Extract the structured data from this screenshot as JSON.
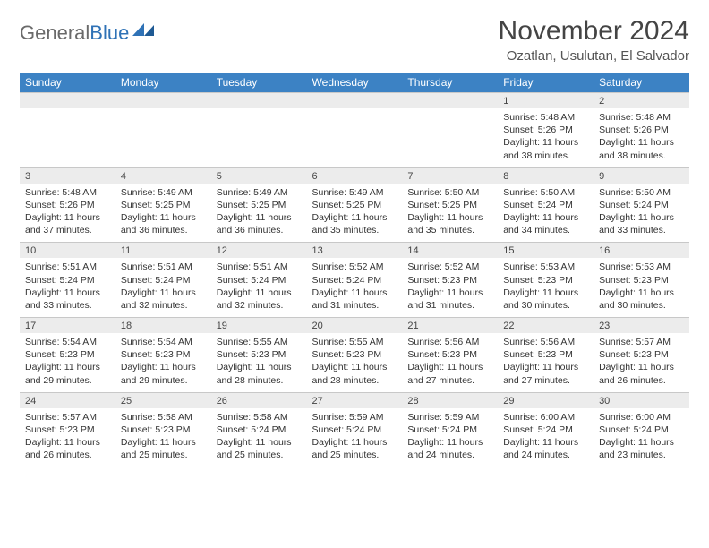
{
  "brand": {
    "part1": "General",
    "part2": "Blue"
  },
  "title": "November 2024",
  "location": "Ozatlan, Usulutan, El Salvador",
  "colors": {
    "header_blue": "#3c82c4",
    "gray_band": "#ececec",
    "brand_gray": "#6a6a6a",
    "brand_blue": "#2f72b6"
  },
  "daysOfWeek": [
    "Sunday",
    "Monday",
    "Tuesday",
    "Wednesday",
    "Thursday",
    "Friday",
    "Saturday"
  ],
  "weeks": [
    {
      "nums": [
        "",
        "",
        "",
        "",
        "",
        "1",
        "2"
      ],
      "cells": [
        null,
        null,
        null,
        null,
        null,
        {
          "sr": "Sunrise: 5:48 AM",
          "ss": "Sunset: 5:26 PM",
          "d1": "Daylight: 11 hours",
          "d2": "and 38 minutes."
        },
        {
          "sr": "Sunrise: 5:48 AM",
          "ss": "Sunset: 5:26 PM",
          "d1": "Daylight: 11 hours",
          "d2": "and 38 minutes."
        }
      ]
    },
    {
      "nums": [
        "3",
        "4",
        "5",
        "6",
        "7",
        "8",
        "9"
      ],
      "cells": [
        {
          "sr": "Sunrise: 5:48 AM",
          "ss": "Sunset: 5:26 PM",
          "d1": "Daylight: 11 hours",
          "d2": "and 37 minutes."
        },
        {
          "sr": "Sunrise: 5:49 AM",
          "ss": "Sunset: 5:25 PM",
          "d1": "Daylight: 11 hours",
          "d2": "and 36 minutes."
        },
        {
          "sr": "Sunrise: 5:49 AM",
          "ss": "Sunset: 5:25 PM",
          "d1": "Daylight: 11 hours",
          "d2": "and 36 minutes."
        },
        {
          "sr": "Sunrise: 5:49 AM",
          "ss": "Sunset: 5:25 PM",
          "d1": "Daylight: 11 hours",
          "d2": "and 35 minutes."
        },
        {
          "sr": "Sunrise: 5:50 AM",
          "ss": "Sunset: 5:25 PM",
          "d1": "Daylight: 11 hours",
          "d2": "and 35 minutes."
        },
        {
          "sr": "Sunrise: 5:50 AM",
          "ss": "Sunset: 5:24 PM",
          "d1": "Daylight: 11 hours",
          "d2": "and 34 minutes."
        },
        {
          "sr": "Sunrise: 5:50 AM",
          "ss": "Sunset: 5:24 PM",
          "d1": "Daylight: 11 hours",
          "d2": "and 33 minutes."
        }
      ]
    },
    {
      "nums": [
        "10",
        "11",
        "12",
        "13",
        "14",
        "15",
        "16"
      ],
      "cells": [
        {
          "sr": "Sunrise: 5:51 AM",
          "ss": "Sunset: 5:24 PM",
          "d1": "Daylight: 11 hours",
          "d2": "and 33 minutes."
        },
        {
          "sr": "Sunrise: 5:51 AM",
          "ss": "Sunset: 5:24 PM",
          "d1": "Daylight: 11 hours",
          "d2": "and 32 minutes."
        },
        {
          "sr": "Sunrise: 5:51 AM",
          "ss": "Sunset: 5:24 PM",
          "d1": "Daylight: 11 hours",
          "d2": "and 32 minutes."
        },
        {
          "sr": "Sunrise: 5:52 AM",
          "ss": "Sunset: 5:24 PM",
          "d1": "Daylight: 11 hours",
          "d2": "and 31 minutes."
        },
        {
          "sr": "Sunrise: 5:52 AM",
          "ss": "Sunset: 5:23 PM",
          "d1": "Daylight: 11 hours",
          "d2": "and 31 minutes."
        },
        {
          "sr": "Sunrise: 5:53 AM",
          "ss": "Sunset: 5:23 PM",
          "d1": "Daylight: 11 hours",
          "d2": "and 30 minutes."
        },
        {
          "sr": "Sunrise: 5:53 AM",
          "ss": "Sunset: 5:23 PM",
          "d1": "Daylight: 11 hours",
          "d2": "and 30 minutes."
        }
      ]
    },
    {
      "nums": [
        "17",
        "18",
        "19",
        "20",
        "21",
        "22",
        "23"
      ],
      "cells": [
        {
          "sr": "Sunrise: 5:54 AM",
          "ss": "Sunset: 5:23 PM",
          "d1": "Daylight: 11 hours",
          "d2": "and 29 minutes."
        },
        {
          "sr": "Sunrise: 5:54 AM",
          "ss": "Sunset: 5:23 PM",
          "d1": "Daylight: 11 hours",
          "d2": "and 29 minutes."
        },
        {
          "sr": "Sunrise: 5:55 AM",
          "ss": "Sunset: 5:23 PM",
          "d1": "Daylight: 11 hours",
          "d2": "and 28 minutes."
        },
        {
          "sr": "Sunrise: 5:55 AM",
          "ss": "Sunset: 5:23 PM",
          "d1": "Daylight: 11 hours",
          "d2": "and 28 minutes."
        },
        {
          "sr": "Sunrise: 5:56 AM",
          "ss": "Sunset: 5:23 PM",
          "d1": "Daylight: 11 hours",
          "d2": "and 27 minutes."
        },
        {
          "sr": "Sunrise: 5:56 AM",
          "ss": "Sunset: 5:23 PM",
          "d1": "Daylight: 11 hours",
          "d2": "and 27 minutes."
        },
        {
          "sr": "Sunrise: 5:57 AM",
          "ss": "Sunset: 5:23 PM",
          "d1": "Daylight: 11 hours",
          "d2": "and 26 minutes."
        }
      ]
    },
    {
      "nums": [
        "24",
        "25",
        "26",
        "27",
        "28",
        "29",
        "30"
      ],
      "cells": [
        {
          "sr": "Sunrise: 5:57 AM",
          "ss": "Sunset: 5:23 PM",
          "d1": "Daylight: 11 hours",
          "d2": "and 26 minutes."
        },
        {
          "sr": "Sunrise: 5:58 AM",
          "ss": "Sunset: 5:23 PM",
          "d1": "Daylight: 11 hours",
          "d2": "and 25 minutes."
        },
        {
          "sr": "Sunrise: 5:58 AM",
          "ss": "Sunset: 5:24 PM",
          "d1": "Daylight: 11 hours",
          "d2": "and 25 minutes."
        },
        {
          "sr": "Sunrise: 5:59 AM",
          "ss": "Sunset: 5:24 PM",
          "d1": "Daylight: 11 hours",
          "d2": "and 25 minutes."
        },
        {
          "sr": "Sunrise: 5:59 AM",
          "ss": "Sunset: 5:24 PM",
          "d1": "Daylight: 11 hours",
          "d2": "and 24 minutes."
        },
        {
          "sr": "Sunrise: 6:00 AM",
          "ss": "Sunset: 5:24 PM",
          "d1": "Daylight: 11 hours",
          "d2": "and 24 minutes."
        },
        {
          "sr": "Sunrise: 6:00 AM",
          "ss": "Sunset: 5:24 PM",
          "d1": "Daylight: 11 hours",
          "d2": "and 23 minutes."
        }
      ]
    }
  ]
}
